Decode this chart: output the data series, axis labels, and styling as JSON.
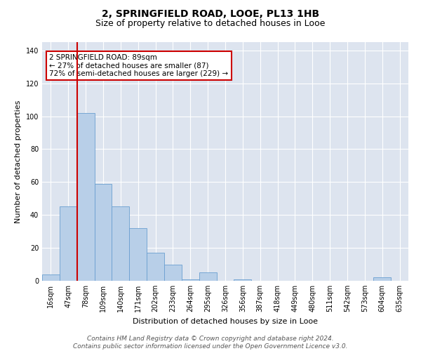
{
  "title": "2, SPRINGFIELD ROAD, LOOE, PL13 1HB",
  "subtitle": "Size of property relative to detached houses in Looe",
  "xlabel": "Distribution of detached houses by size in Looe",
  "ylabel": "Number of detached properties",
  "bar_color": "#b8cfe8",
  "bar_edge_color": "#6a9fd0",
  "background_color": "#dde4ef",
  "grid_color": "#ffffff",
  "annotation_box_color": "#cc0000",
  "red_line_color": "#cc0000",
  "categories": [
    "16sqm",
    "47sqm",
    "78sqm",
    "109sqm",
    "140sqm",
    "171sqm",
    "202sqm",
    "233sqm",
    "264sqm",
    "295sqm",
    "326sqm",
    "356sqm",
    "387sqm",
    "418sqm",
    "449sqm",
    "480sqm",
    "511sqm",
    "542sqm",
    "573sqm",
    "604sqm",
    "635sqm"
  ],
  "values": [
    4,
    45,
    102,
    59,
    45,
    32,
    17,
    10,
    1,
    5,
    0,
    1,
    0,
    0,
    0,
    0,
    0,
    0,
    0,
    2,
    0
  ],
  "ylim": [
    0,
    145
  ],
  "yticks": [
    0,
    20,
    40,
    60,
    80,
    100,
    120,
    140
  ],
  "red_line_x": 1.5,
  "annotation_text": "2 SPRINGFIELD ROAD: 89sqm\n← 27% of detached houses are smaller (87)\n72% of semi-detached houses are larger (229) →",
  "footnote": "Contains HM Land Registry data © Crown copyright and database right 2024.\nContains public sector information licensed under the Open Government Licence v3.0.",
  "title_fontsize": 10,
  "subtitle_fontsize": 9,
  "annotation_fontsize": 7.5,
  "tick_fontsize": 7,
  "ylabel_fontsize": 8,
  "xlabel_fontsize": 8
}
